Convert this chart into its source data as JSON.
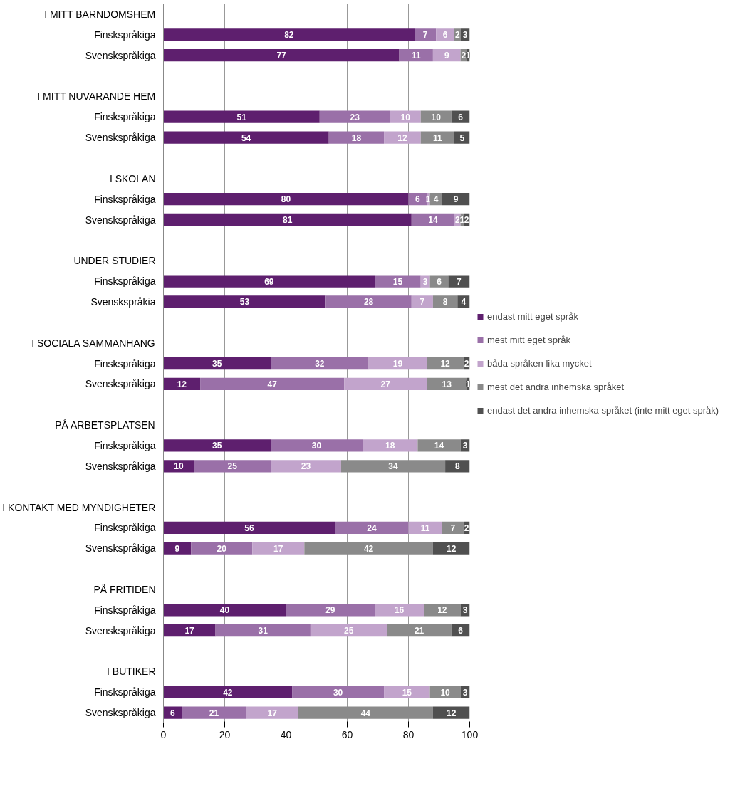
{
  "chart_data": {
    "type": "bar",
    "orientation": "horizontal",
    "stacked": true,
    "data_labels": true,
    "grid": "x",
    "legend": "right",
    "categories": [
      "I MITT BARNDOMSHEM",
      "Finskspråkiga",
      "Svenskspråkiga",
      null,
      "I MITT NUVARANDE HEM",
      "Finskspråkiga",
      "Svenskspråkiga",
      null,
      "I SKOLAN",
      "Finskspråkiga",
      "Svenskspråkiga",
      null,
      "UNDER STUDIER",
      "Finskspråkiga",
      "Svenskspråkia",
      null,
      "I SOCIALA SAMMANHANG",
      "Finskspråkiga",
      "Svenskspråkiga",
      null,
      "PÅ ARBETSPLATSEN",
      "Finskspråkiga",
      "Svenskspråkiga",
      null,
      "I KONTAKT MED MYNDIGHETER",
      "Finskspråkiga",
      "Svenskspråkiga",
      null,
      "PÅ FRITIDEN",
      "Finskspråkiga",
      "Svenskspråkiga",
      null,
      "I BUTIKER",
      "Finskspråkiga",
      "Svenskspråkiga"
    ],
    "xlim": [
      0,
      100
    ],
    "xticks": [
      0,
      20,
      40,
      60,
      80,
      100
    ],
    "series": [
      {
        "name": "endast mitt eget språk",
        "color": "#5e1f6e",
        "values": [
          null,
          82,
          77,
          null,
          null,
          51,
          54,
          null,
          null,
          80,
          81,
          null,
          null,
          69,
          53,
          null,
          null,
          35,
          12,
          null,
          null,
          35,
          10,
          null,
          null,
          56,
          9,
          null,
          null,
          40,
          17,
          null,
          null,
          42,
          6
        ]
      },
      {
        "name": "mest mitt eget språk",
        "color": "#9a70a8",
        "values": [
          null,
          7,
          11,
          null,
          null,
          23,
          18,
          null,
          null,
          6,
          14,
          null,
          null,
          15,
          28,
          null,
          null,
          32,
          47,
          null,
          null,
          30,
          25,
          null,
          null,
          24,
          20,
          null,
          null,
          29,
          31,
          null,
          null,
          30,
          21
        ]
      },
      {
        "name": "båda språken lika mycket",
        "color": "#c2a4cc",
        "values": [
          null,
          6,
          9,
          null,
          null,
          10,
          12,
          null,
          null,
          1,
          2,
          null,
          null,
          3,
          7,
          null,
          null,
          19,
          27,
          null,
          null,
          18,
          23,
          null,
          null,
          11,
          17,
          null,
          null,
          16,
          25,
          null,
          null,
          15,
          17
        ]
      },
      {
        "name": "mest det andra inhemska språket",
        "color": "#8a8a8a",
        "values": [
          null,
          2,
          2,
          null,
          null,
          10,
          11,
          null,
          null,
          4,
          1,
          null,
          null,
          6,
          8,
          null,
          null,
          12,
          13,
          null,
          null,
          14,
          34,
          null,
          null,
          7,
          42,
          null,
          null,
          12,
          21,
          null,
          null,
          10,
          44
        ]
      },
      {
        "name": "endast det andra inhemska språket (inte mitt eget språk)",
        "color": "#505050",
        "values": [
          null,
          3,
          1,
          null,
          null,
          6,
          5,
          null,
          null,
          9,
          2,
          null,
          null,
          7,
          4,
          null,
          null,
          2,
          1,
          null,
          null,
          3,
          8,
          null,
          null,
          2,
          12,
          null,
          null,
          3,
          6,
          null,
          null,
          3,
          12
        ]
      }
    ]
  }
}
